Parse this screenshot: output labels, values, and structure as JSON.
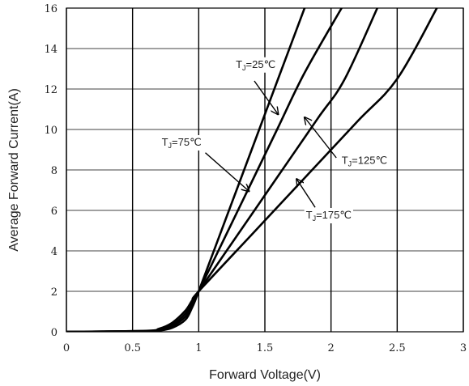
{
  "chart_data": {
    "type": "line",
    "xlabel": "Forward Voltage(V)",
    "ylabel": "Average Forward Current(A)",
    "xlim": [
      0,
      3
    ],
    "ylim": [
      0,
      16
    ],
    "x_ticks": [
      "0",
      "0.5",
      "1",
      "1.5",
      "2",
      "2.5",
      "3"
    ],
    "y_ticks": [
      "0",
      "2",
      "4",
      "6",
      "8",
      "10",
      "12",
      "14",
      "16"
    ],
    "grid": "on",
    "series": [
      {
        "name": "TJ=25℃",
        "x": [
          0,
          0.6,
          0.7,
          0.8,
          0.9,
          0.95,
          1.0,
          1.2,
          1.4,
          1.6,
          1.8
        ],
        "y": [
          0,
          0.02,
          0.06,
          0.2,
          0.6,
          1.2,
          2.0,
          5.5,
          9.0,
          12.5,
          16.0
        ]
      },
      {
        "name": "TJ=75℃",
        "x": [
          0,
          0.6,
          0.7,
          0.8,
          0.9,
          0.95,
          1.0,
          1.2,
          1.4,
          1.6,
          1.8,
          2.08
        ],
        "y": [
          0,
          0.03,
          0.09,
          0.28,
          0.75,
          1.35,
          2.0,
          4.7,
          7.4,
          10.1,
          12.8,
          16.0
        ]
      },
      {
        "name": "TJ=125℃",
        "x": [
          0,
          0.6,
          0.7,
          0.8,
          0.9,
          0.95,
          1.0,
          1.3,
          1.6,
          1.9,
          2.1,
          2.35
        ],
        "y": [
          0,
          0.04,
          0.12,
          0.35,
          0.9,
          1.45,
          2.0,
          4.85,
          7.7,
          10.55,
          12.45,
          16.0
        ]
      },
      {
        "name": "TJ=175℃",
        "x": [
          0,
          0.6,
          0.7,
          0.8,
          0.9,
          0.95,
          1.0,
          1.4,
          1.8,
          2.2,
          2.5,
          2.8
        ],
        "y": [
          0,
          0.05,
          0.15,
          0.45,
          1.05,
          1.55,
          2.0,
          4.8,
          7.6,
          10.4,
          12.5,
          16.0
        ]
      }
    ],
    "annotations": [
      {
        "text": "TJ=25℃",
        "main": "T",
        "sub": "J",
        "rest": "=25℃",
        "label_at": [
          1.28,
          13.05
        ],
        "arrow_from": [
          1.42,
          12.4
        ],
        "arrow_to": [
          1.6,
          10.75
        ]
      },
      {
        "text": "TJ=75℃",
        "main": "T",
        "sub": "J",
        "rest": "=75℃",
        "label_at": [
          0.72,
          9.2
        ],
        "arrow_from": [
          1.05,
          8.85
        ],
        "arrow_to": [
          1.38,
          6.95
        ]
      },
      {
        "text": "TJ=125℃",
        "main": "T",
        "sub": "J",
        "rest": "=125℃",
        "label_at": [
          2.08,
          8.3
        ],
        "arrow_from": [
          2.04,
          8.6
        ],
        "arrow_to": [
          1.8,
          10.6
        ]
      },
      {
        "text": "TJ=175℃",
        "main": "T",
        "sub": "J",
        "rest": "=175℃",
        "label_at": [
          1.81,
          5.6
        ],
        "arrow_from": [
          1.88,
          6.15
        ],
        "arrow_to": [
          1.74,
          7.55
        ]
      }
    ],
    "colors": {
      "line": "#000000",
      "grid": "#000000",
      "text": "#222222",
      "background": "#ffffff"
    }
  }
}
